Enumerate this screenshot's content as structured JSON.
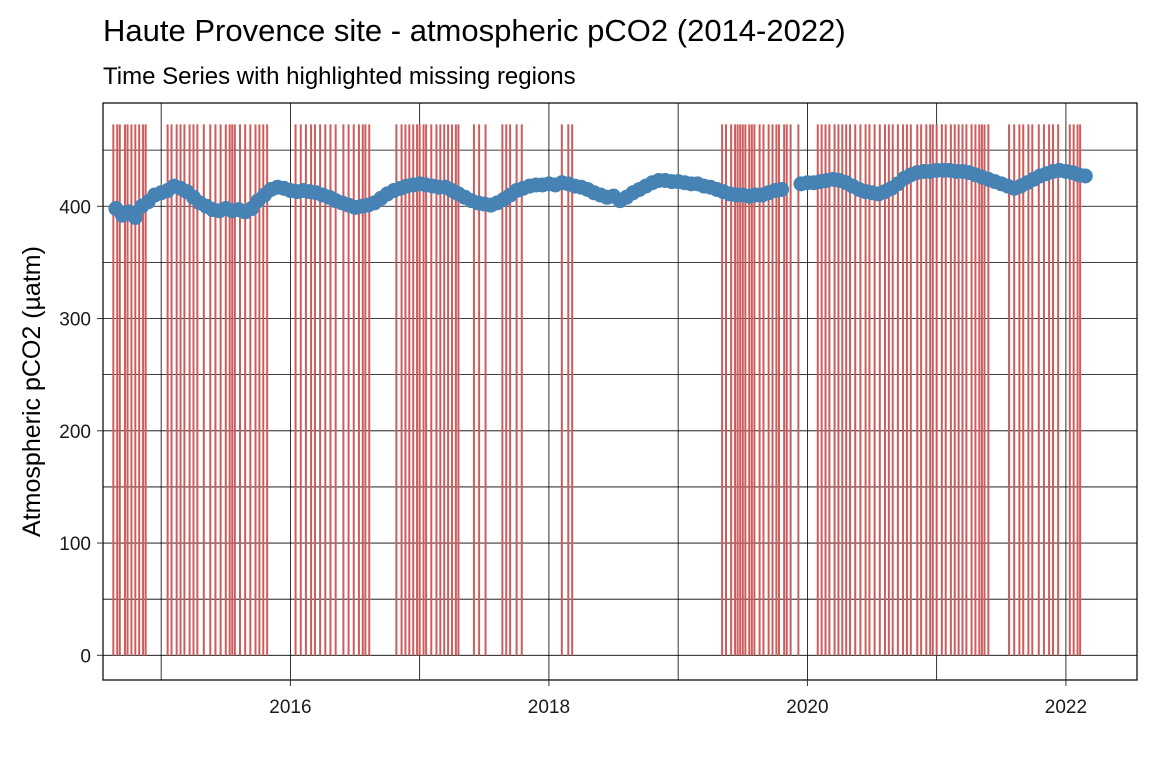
{
  "chart_data": {
    "type": "scatter",
    "title": "Haute Provence site - atmospheric pCO2 (2014-2022)",
    "subtitle": "Time Series with highlighted missing regions",
    "xlabel": "",
    "ylabel": "Atmospheric pCO2 (µatm)",
    "xlim": [
      2014.55,
      2022.55
    ],
    "ylim": [
      -22,
      492
    ],
    "x_ticks": [
      2016,
      2018,
      2020,
      2022
    ],
    "x_tick_labels": [
      "2016",
      "2018",
      "2020",
      "2022"
    ],
    "y_ticks": [
      0,
      100,
      200,
      300,
      400
    ],
    "y_tick_labels": [
      "0",
      "100",
      "200",
      "300",
      "400"
    ],
    "grid": true,
    "point_color": "#4682B4",
    "missing_color": "#CD5C5C",
    "missing_top": 473,
    "series": [
      {
        "values": [
          [
            2014.65,
            398
          ],
          [
            2014.7,
            392
          ],
          [
            2014.75,
            395
          ],
          [
            2014.8,
            390
          ],
          [
            2014.85,
            400
          ],
          [
            2014.9,
            404
          ],
          [
            2014.95,
            410
          ],
          [
            2015.0,
            412
          ],
          [
            2015.05,
            414
          ],
          [
            2015.1,
            418
          ],
          [
            2015.15,
            416
          ],
          [
            2015.2,
            413
          ],
          [
            2015.25,
            408
          ],
          [
            2015.3,
            403
          ],
          [
            2015.35,
            400
          ],
          [
            2015.4,
            397
          ],
          [
            2015.45,
            396
          ],
          [
            2015.5,
            398
          ],
          [
            2015.55,
            396
          ],
          [
            2015.6,
            397
          ],
          [
            2015.65,
            395
          ],
          [
            2015.7,
            398
          ],
          [
            2015.75,
            405
          ],
          [
            2015.8,
            410
          ],
          [
            2015.85,
            415
          ],
          [
            2015.9,
            417
          ],
          [
            2015.95,
            416
          ],
          [
            2016.0,
            414
          ],
          [
            2016.05,
            413
          ],
          [
            2016.1,
            414
          ],
          [
            2016.15,
            413
          ],
          [
            2016.2,
            412
          ],
          [
            2016.25,
            410
          ],
          [
            2016.3,
            408
          ],
          [
            2016.35,
            405
          ],
          [
            2016.4,
            403
          ],
          [
            2016.45,
            401
          ],
          [
            2016.5,
            399
          ],
          [
            2016.55,
            400
          ],
          [
            2016.6,
            401
          ],
          [
            2016.65,
            403
          ],
          [
            2016.7,
            407
          ],
          [
            2016.75,
            411
          ],
          [
            2016.8,
            414
          ],
          [
            2016.85,
            416
          ],
          [
            2016.9,
            418
          ],
          [
            2016.95,
            419
          ],
          [
            2017.0,
            420
          ],
          [
            2017.05,
            419
          ],
          [
            2017.1,
            418
          ],
          [
            2017.15,
            417
          ],
          [
            2017.2,
            417
          ],
          [
            2017.25,
            414
          ],
          [
            2017.3,
            411
          ],
          [
            2017.35,
            408
          ],
          [
            2017.4,
            405
          ],
          [
            2017.45,
            403
          ],
          [
            2017.5,
            402
          ],
          [
            2017.55,
            401
          ],
          [
            2017.6,
            403
          ],
          [
            2017.65,
            406
          ],
          [
            2017.7,
            410
          ],
          [
            2017.75,
            414
          ],
          [
            2017.8,
            416
          ],
          [
            2017.85,
            418
          ],
          [
            2017.9,
            419
          ],
          [
            2017.95,
            419
          ],
          [
            2018.0,
            420
          ],
          [
            2018.05,
            419
          ],
          [
            2018.1,
            421
          ],
          [
            2018.15,
            420
          ],
          [
            2018.2,
            418
          ],
          [
            2018.25,
            417
          ],
          [
            2018.3,
            415
          ],
          [
            2018.35,
            412
          ],
          [
            2018.4,
            410
          ],
          [
            2018.45,
            408
          ],
          [
            2018.5,
            409
          ],
          [
            2018.55,
            405
          ],
          [
            2018.6,
            408
          ],
          [
            2018.65,
            412
          ],
          [
            2018.7,
            415
          ],
          [
            2018.75,
            418
          ],
          [
            2018.8,
            421
          ],
          [
            2018.85,
            423
          ],
          [
            2018.9,
            423
          ],
          [
            2018.95,
            422
          ],
          [
            2019.0,
            422
          ],
          [
            2019.05,
            421
          ],
          [
            2019.1,
            420
          ],
          [
            2019.15,
            420
          ],
          [
            2019.2,
            418
          ],
          [
            2019.25,
            417
          ],
          [
            2019.3,
            415
          ],
          [
            2019.35,
            413
          ],
          [
            2019.4,
            411
          ],
          [
            2019.45,
            410
          ],
          [
            2019.5,
            410
          ],
          [
            2019.55,
            409
          ],
          [
            2019.6,
            410
          ],
          [
            2019.65,
            410
          ],
          [
            2019.7,
            412
          ],
          [
            2019.75,
            414
          ],
          [
            2019.8,
            415
          ],
          [
            2019.95,
            420
          ],
          [
            2020.0,
            421
          ],
          [
            2020.05,
            421
          ],
          [
            2020.1,
            422
          ],
          [
            2020.15,
            423
          ],
          [
            2020.2,
            424
          ],
          [
            2020.25,
            423
          ],
          [
            2020.3,
            421
          ],
          [
            2020.35,
            418
          ],
          [
            2020.4,
            415
          ],
          [
            2020.45,
            413
          ],
          [
            2020.5,
            412
          ],
          [
            2020.55,
            411
          ],
          [
            2020.6,
            413
          ],
          [
            2020.65,
            416
          ],
          [
            2020.7,
            420
          ],
          [
            2020.75,
            425
          ],
          [
            2020.8,
            428
          ],
          [
            2020.85,
            430
          ],
          [
            2020.9,
            431
          ],
          [
            2020.95,
            431
          ],
          [
            2021.0,
            432
          ],
          [
            2021.05,
            432
          ],
          [
            2021.1,
            432
          ],
          [
            2021.15,
            431
          ],
          [
            2021.2,
            431
          ],
          [
            2021.25,
            430
          ],
          [
            2021.3,
            428
          ],
          [
            2021.35,
            426
          ],
          [
            2021.4,
            424
          ],
          [
            2021.45,
            422
          ],
          [
            2021.5,
            420
          ],
          [
            2021.55,
            418
          ],
          [
            2021.6,
            416
          ],
          [
            2021.65,
            418
          ],
          [
            2021.7,
            421
          ],
          [
            2021.75,
            424
          ],
          [
            2021.8,
            427
          ],
          [
            2021.85,
            429
          ],
          [
            2021.9,
            431
          ],
          [
            2021.95,
            432
          ],
          [
            2022.0,
            431
          ],
          [
            2022.05,
            430
          ],
          [
            2022.1,
            428
          ],
          [
            2022.15,
            427
          ]
        ]
      }
    ],
    "missing_dates": [
      2014.63,
      2014.66,
      2014.68,
      2014.72,
      2014.74,
      2014.77,
      2014.8,
      2014.83,
      2014.86,
      2014.88,
      2015.05,
      2015.08,
      2015.12,
      2015.15,
      2015.18,
      2015.22,
      2015.25,
      2015.28,
      2015.33,
      2015.38,
      2015.42,
      2015.46,
      2015.5,
      2015.53,
      2015.55,
      2015.57,
      2015.61,
      2015.65,
      2015.69,
      2015.73,
      2015.76,
      2015.79,
      2015.82,
      2016.04,
      2016.08,
      2016.12,
      2016.16,
      2016.19,
      2016.23,
      2016.27,
      2016.31,
      2016.35,
      2016.41,
      2016.45,
      2016.49,
      2016.53,
      2016.56,
      2016.58,
      2016.61,
      2016.82,
      2016.86,
      2016.89,
      2016.92,
      2016.95,
      2016.98,
      2017.0,
      2017.03,
      2017.05,
      2017.09,
      2017.13,
      2017.16,
      2017.19,
      2017.22,
      2017.25,
      2017.28,
      2017.3,
      2017.42,
      2017.46,
      2017.51,
      2017.64,
      2017.67,
      2017.7,
      2017.75,
      2017.79,
      2018.1,
      2018.15,
      2018.18,
      2019.34,
      2019.37,
      2019.41,
      2019.44,
      2019.46,
      2019.48,
      2019.5,
      2019.52,
      2019.55,
      2019.57,
      2019.59,
      2019.63,
      2019.66,
      2019.7,
      2019.73,
      2019.76,
      2019.78,
      2019.82,
      2019.84,
      2019.87,
      2019.93,
      2020.08,
      2020.11,
      2020.14,
      2020.17,
      2020.21,
      2020.24,
      2020.27,
      2020.3,
      2020.33,
      2020.37,
      2020.41,
      2020.45,
      2020.48,
      2020.52,
      2020.56,
      2020.6,
      2020.63,
      2020.66,
      2020.7,
      2020.74,
      2020.77,
      2020.8,
      2020.85,
      2020.88,
      2020.92,
      2020.95,
      2020.97,
      2021.0,
      2021.04,
      2021.07,
      2021.11,
      2021.14,
      2021.17,
      2021.2,
      2021.23,
      2021.27,
      2021.3,
      2021.33,
      2021.35,
      2021.37,
      2021.4,
      2021.56,
      2021.6,
      2021.64,
      2021.67,
      2021.71,
      2021.74,
      2021.79,
      2021.83,
      2021.87,
      2021.9,
      2021.94,
      2022.03,
      2022.06,
      2022.09,
      2022.11
    ]
  }
}
